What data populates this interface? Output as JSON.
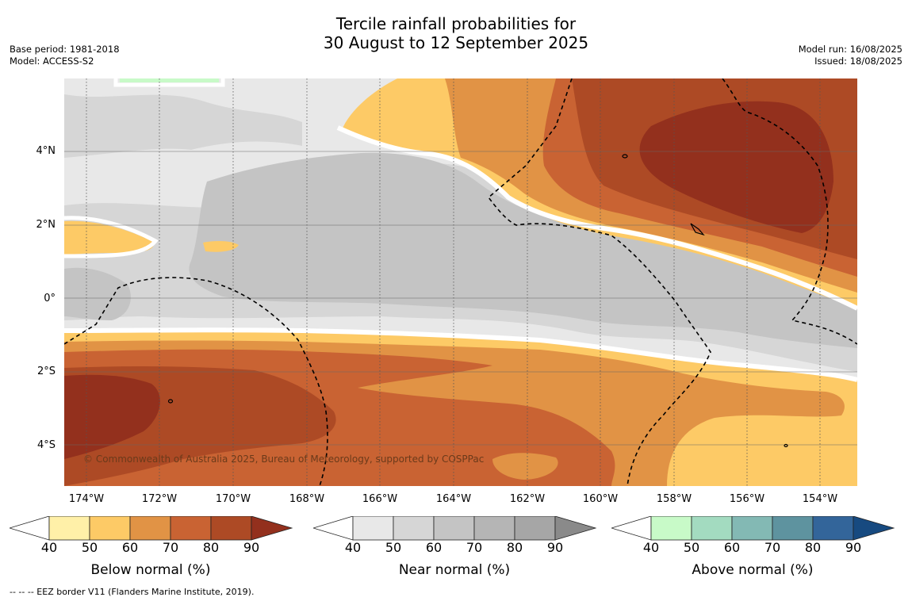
{
  "title": {
    "line1": "Tercile rainfall probabilities for",
    "line2": "30 August to 12 September 2025"
  },
  "meta": {
    "base_period": "Base period: 1981-2018",
    "model": "Model: ACCESS-S2",
    "model_run": "Model run: 16/08/2025",
    "issued": "Issued: 18/08/2025"
  },
  "copyright": "© Commonwealth of Australia 2025, Bureau of Meteorology, supported by COSPPac",
  "latitude_labels": [
    "4°N",
    "2°N",
    "0°",
    "2°S",
    "4°S"
  ],
  "longitude_labels": [
    "174°W",
    "172°W",
    "170°W",
    "168°W",
    "166°W",
    "164°W",
    "162°W",
    "160°W",
    "158°W",
    "156°W",
    "154°W"
  ],
  "colorbars": [
    {
      "title": "Below normal (%)",
      "ticks": [
        "40",
        "50",
        "60",
        "70",
        "80",
        "90"
      ],
      "colors": [
        "#fff0a8",
        "#fdca66",
        "#e19345",
        "#c96333",
        "#ad4a25",
        "#93301d"
      ]
    },
    {
      "title": "Near normal (%)",
      "ticks": [
        "40",
        "50",
        "60",
        "70",
        "80",
        "90"
      ],
      "colors": [
        "#e8e8e8",
        "#d6d6d6",
        "#c4c4c4",
        "#b5b5b5",
        "#a6a6a6",
        "#8a8a8a"
      ]
    },
    {
      "title": "Above normal (%)",
      "ticks": [
        "40",
        "50",
        "60",
        "70",
        "80",
        "90"
      ],
      "colors": [
        "#c8fac8",
        "#a3dbc0",
        "#83b9b4",
        "#5e939f",
        "#33659a",
        "#174a80"
      ]
    }
  ],
  "footer": "-- -- -- EEZ border V11 (Flanders Marine Institute, 2019)."
}
